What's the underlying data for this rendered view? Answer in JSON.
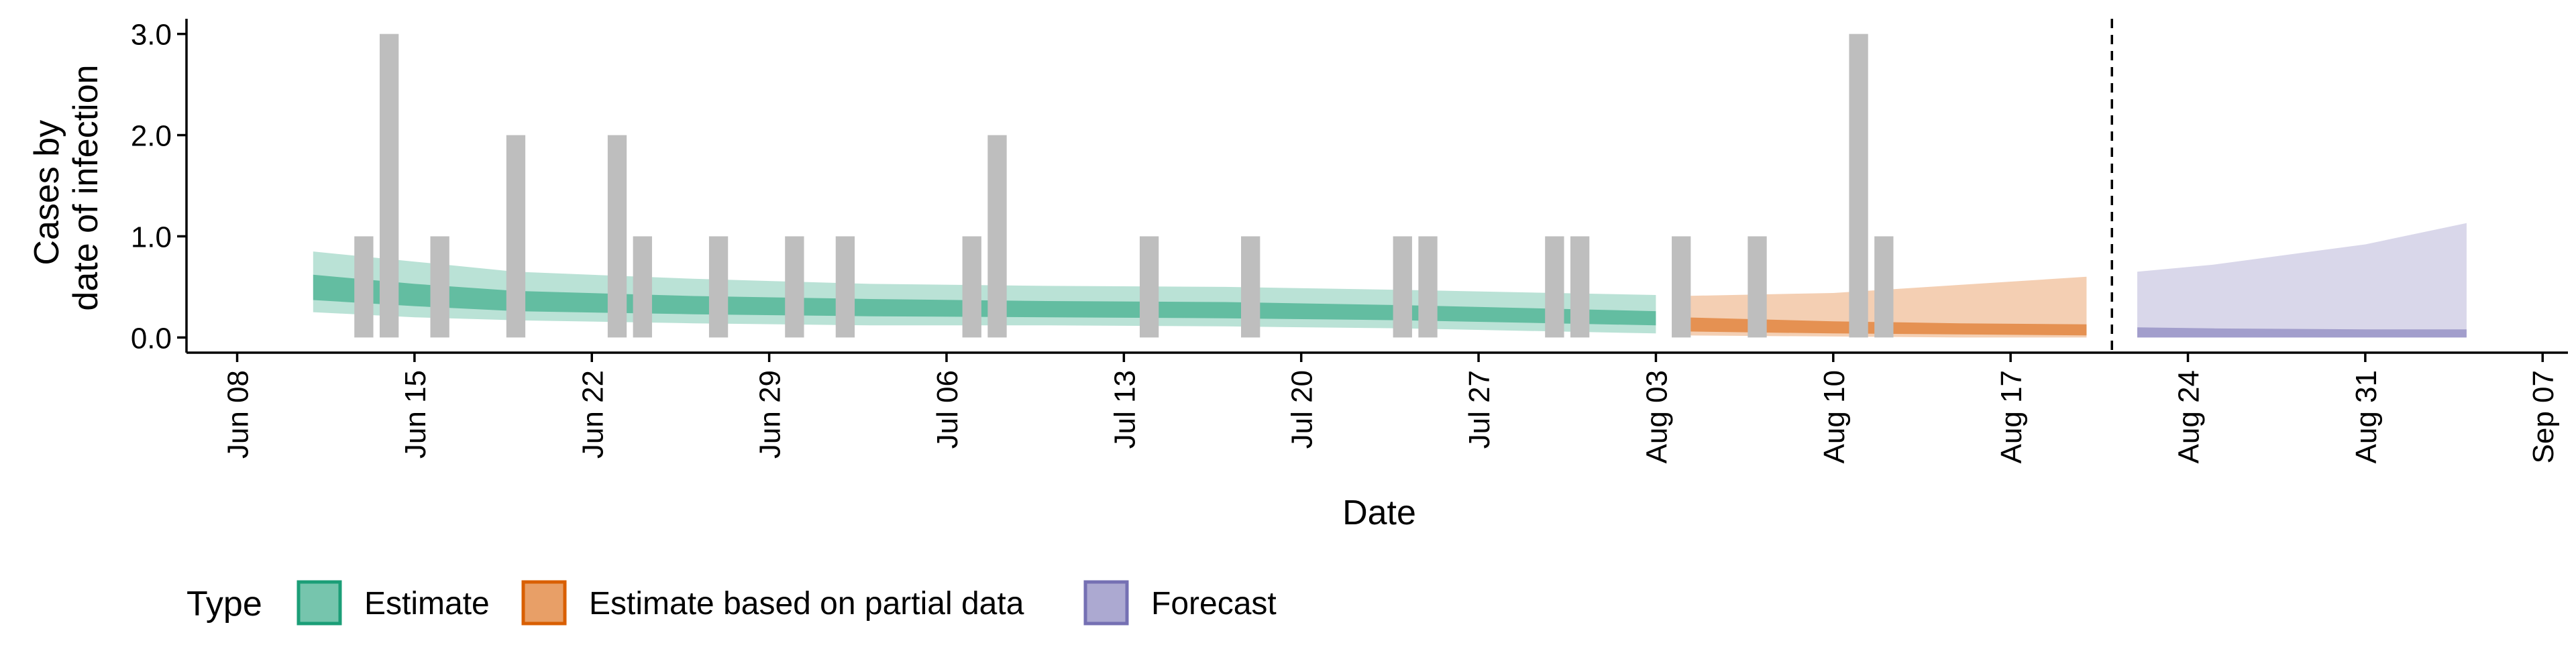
{
  "chart_data": {
    "type": "area",
    "xlabel": "Date",
    "ylabel_lines": [
      "Cases by",
      "date of infection"
    ],
    "x_axis": {
      "type": "date",
      "range": [
        "2020-06-06",
        "2020-09-08"
      ],
      "ticks": [
        "2020-06-08",
        "2020-06-15",
        "2020-06-22",
        "2020-06-29",
        "2020-07-06",
        "2020-07-13",
        "2020-07-20",
        "2020-07-27",
        "2020-08-03",
        "2020-08-10",
        "2020-08-17",
        "2020-08-24",
        "2020-08-31",
        "2020-09-07"
      ],
      "tick_labels": [
        "Jun 08",
        "Jun 15",
        "Jun 22",
        "Jun 29",
        "Jul 06",
        "Jul 13",
        "Jul 20",
        "Jul 27",
        "Aug 03",
        "Aug 10",
        "Aug 17",
        "Aug 24",
        "Aug 31",
        "Sep 07"
      ]
    },
    "y_axis": {
      "range": [
        -0.15,
        3.15
      ],
      "ticks": [
        0,
        1,
        2,
        3
      ],
      "tick_labels": [
        "0.0",
        "1.0",
        "2.0",
        "3.0"
      ]
    },
    "grid": false,
    "reference_line": {
      "x": "2020-08-21",
      "style": "dashed"
    },
    "observed_cases": {
      "color": "#bebebe",
      "points": [
        {
          "date": "2020-06-13",
          "value": 1
        },
        {
          "date": "2020-06-14",
          "value": 3
        },
        {
          "date": "2020-06-16",
          "value": 1
        },
        {
          "date": "2020-06-19",
          "value": 2
        },
        {
          "date": "2020-06-23",
          "value": 2
        },
        {
          "date": "2020-06-24",
          "value": 1
        },
        {
          "date": "2020-06-27",
          "value": 1
        },
        {
          "date": "2020-06-30",
          "value": 1
        },
        {
          "date": "2020-07-02",
          "value": 1
        },
        {
          "date": "2020-07-07",
          "value": 1
        },
        {
          "date": "2020-07-08",
          "value": 2
        },
        {
          "date": "2020-07-14",
          "value": 1
        },
        {
          "date": "2020-07-18",
          "value": 1
        },
        {
          "date": "2020-07-24",
          "value": 1
        },
        {
          "date": "2020-07-25",
          "value": 1
        },
        {
          "date": "2020-07-30",
          "value": 1
        },
        {
          "date": "2020-07-31",
          "value": 1
        },
        {
          "date": "2020-08-04",
          "value": 1
        },
        {
          "date": "2020-08-07",
          "value": 1
        },
        {
          "date": "2020-08-11",
          "value": 3
        },
        {
          "date": "2020-08-12",
          "value": 1
        }
      ]
    },
    "series": [
      {
        "name": "Estimate",
        "color": "#1b9e77",
        "outer_alpha": 0.3,
        "inner_alpha": 0.55,
        "points": [
          {
            "date": "2020-06-11",
            "lower90": 0.25,
            "upper90": 0.85,
            "lower50": 0.37,
            "upper50": 0.62
          },
          {
            "date": "2020-06-15",
            "lower90": 0.2,
            "upper90": 0.75,
            "lower50": 0.31,
            "upper50": 0.53
          },
          {
            "date": "2020-06-19",
            "lower90": 0.17,
            "upper90": 0.65,
            "lower50": 0.26,
            "upper50": 0.46
          },
          {
            "date": "2020-06-26",
            "lower90": 0.14,
            "upper90": 0.58,
            "lower50": 0.23,
            "upper50": 0.41
          },
          {
            "date": "2020-07-03",
            "lower90": 0.12,
            "upper90": 0.53,
            "lower50": 0.21,
            "upper50": 0.38
          },
          {
            "date": "2020-07-10",
            "lower90": 0.12,
            "upper90": 0.51,
            "lower50": 0.2,
            "upper50": 0.36
          },
          {
            "date": "2020-07-17",
            "lower90": 0.11,
            "upper90": 0.5,
            "lower50": 0.19,
            "upper50": 0.35
          },
          {
            "date": "2020-07-24",
            "lower90": 0.09,
            "upper90": 0.47,
            "lower50": 0.17,
            "upper50": 0.32
          },
          {
            "date": "2020-08-03",
            "lower90": 0.04,
            "upper90": 0.42,
            "lower50": 0.12,
            "upper50": 0.26
          }
        ]
      },
      {
        "name": "Estimate based on partial data",
        "color": "#d95f02",
        "outer_alpha": 0.3,
        "inner_alpha": 0.55,
        "points": [
          {
            "date": "2020-08-04",
            "lower90": 0.02,
            "upper90": 0.41,
            "lower50": 0.06,
            "upper50": 0.2
          },
          {
            "date": "2020-08-10",
            "lower90": 0.01,
            "upper90": 0.44,
            "lower50": 0.04,
            "upper50": 0.16
          },
          {
            "date": "2020-08-15",
            "lower90": 0.0,
            "upper90": 0.52,
            "lower50": 0.03,
            "upper50": 0.14
          },
          {
            "date": "2020-08-20",
            "lower90": 0.0,
            "upper90": 0.6,
            "lower50": 0.02,
            "upper50": 0.13
          }
        ]
      },
      {
        "name": "Forecast",
        "color": "#7570b3",
        "outer_alpha": 0.28,
        "inner_alpha": 0.55,
        "points": [
          {
            "date": "2020-08-22",
            "lower90": 0.0,
            "upper90": 0.65,
            "lower50": 0.0,
            "upper50": 0.1
          },
          {
            "date": "2020-08-25",
            "lower90": 0.0,
            "upper90": 0.72,
            "lower50": 0.0,
            "upper50": 0.09
          },
          {
            "date": "2020-08-31",
            "lower90": 0.0,
            "upper90": 0.92,
            "lower50": 0.0,
            "upper50": 0.08
          },
          {
            "date": "2020-09-04",
            "lower90": 0.0,
            "upper90": 1.13,
            "lower50": 0.0,
            "upper50": 0.08
          }
        ]
      }
    ],
    "legend": {
      "placement": "bottom-left",
      "title": "Type",
      "items": [
        {
          "label": "Estimate",
          "color": "#1b9e77"
        },
        {
          "label": "Estimate based on partial data",
          "color": "#d95f02"
        },
        {
          "label": "Forecast",
          "color": "#7570b3"
        }
      ]
    }
  }
}
